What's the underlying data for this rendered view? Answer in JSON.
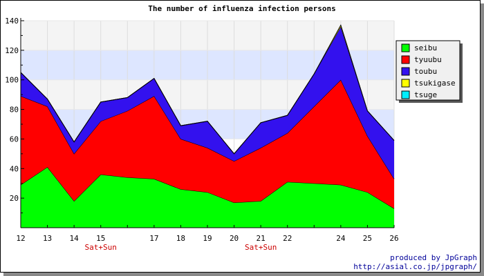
{
  "chart_data": {
    "type": "area",
    "stacked": true,
    "title": "The number of influenza infection persons",
    "x": [
      "12",
      "13",
      "14",
      "15",
      "16",
      "17",
      "18",
      "19",
      "20",
      "21",
      "22",
      "23",
      "24",
      "25",
      "26"
    ],
    "x_tick_labels": [
      "12",
      "13",
      "14",
      "15",
      "17",
      "18",
      "19",
      "20",
      "21",
      "22",
      "24",
      "25",
      "26"
    ],
    "x_sublabels": [
      {
        "x": "15",
        "text": "Sat+Sun"
      },
      {
        "x": "21",
        "text": "Sat+Sun"
      }
    ],
    "ylim": [
      0,
      140
    ],
    "y_ticks": [
      20,
      40,
      60,
      80,
      100,
      120,
      140
    ],
    "series": [
      {
        "name": "seibu",
        "color": "#00ff00",
        "values": [
          29,
          41,
          18,
          36,
          34,
          33,
          26,
          24,
          17,
          18,
          31,
          30,
          29,
          24,
          13
        ]
      },
      {
        "name": "tyuubu",
        "color": "#ff0000",
        "values": [
          60,
          41,
          32,
          36,
          45,
          56,
          34,
          30,
          28,
          36,
          33,
          52,
          71,
          38,
          20
        ]
      },
      {
        "name": "toubu",
        "color": "#3311ee",
        "values": [
          16,
          5,
          8,
          13,
          9,
          12,
          9,
          18,
          5,
          17,
          12,
          22,
          36,
          17,
          26
        ]
      },
      {
        "name": "tsukigase",
        "color": "#ffff00",
        "values": [
          0,
          0,
          0,
          0,
          0,
          0,
          0,
          0,
          0,
          0,
          0,
          0,
          1,
          0,
          0
        ]
      },
      {
        "name": "tsuge",
        "color": "#00eeff",
        "values": [
          0,
          0,
          0,
          0,
          0,
          0,
          0,
          0,
          0,
          0,
          0,
          0,
          0,
          0,
          0
        ]
      }
    ],
    "grid": true,
    "legend_position": "top-right"
  },
  "footer": {
    "credit_line1": "produced by JpGraph",
    "credit_line2": "http://asial.co.jp/jpgraph/"
  }
}
